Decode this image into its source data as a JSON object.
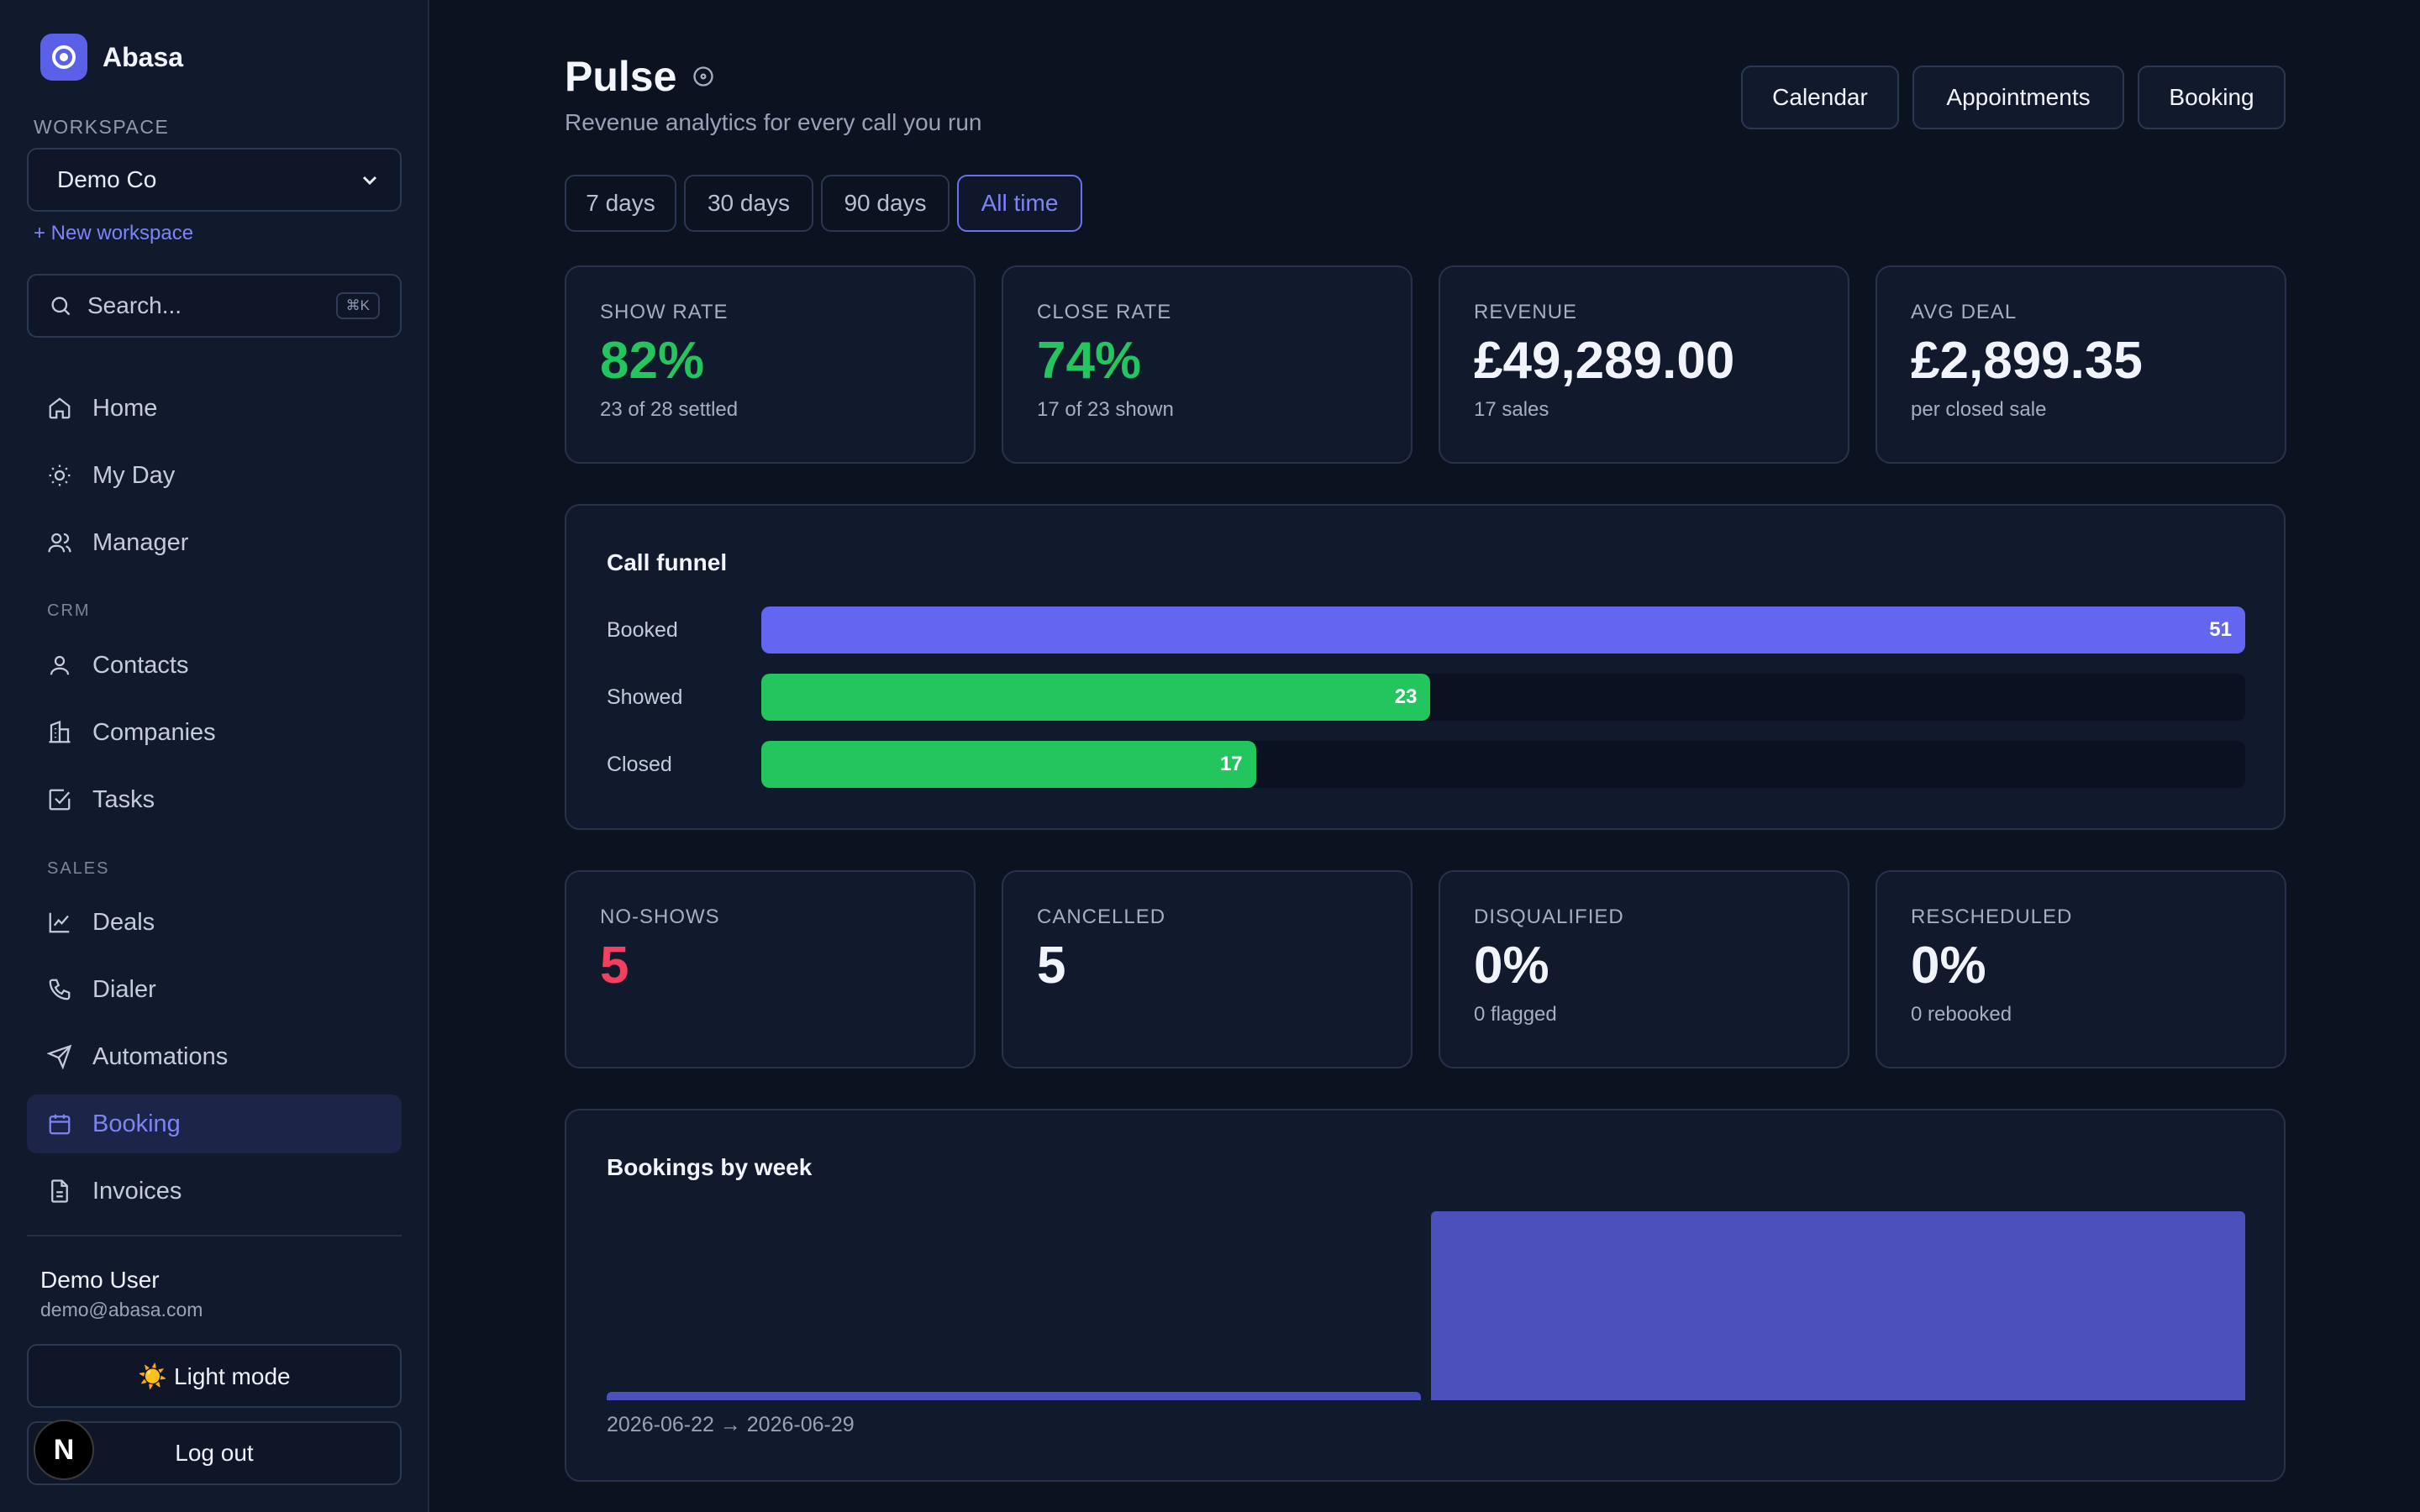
{
  "app": {
    "name": "Abasa"
  },
  "workspace": {
    "label": "WORKSPACE",
    "selected": "Demo Co",
    "new_link": "+ New workspace"
  },
  "search": {
    "placeholder": "Search...",
    "shortcut": "⌘K"
  },
  "nav": {
    "main": [
      {
        "label": "Home",
        "icon": "home-icon"
      },
      {
        "label": "My Day",
        "icon": "sun-icon"
      },
      {
        "label": "Manager",
        "icon": "users-icon"
      }
    ],
    "crm_label": "CRM",
    "crm": [
      {
        "label": "Contacts",
        "icon": "user-icon"
      },
      {
        "label": "Companies",
        "icon": "building-icon"
      },
      {
        "label": "Tasks",
        "icon": "checkbox-icon"
      }
    ],
    "sales_label": "SALES",
    "sales": [
      {
        "label": "Deals",
        "icon": "line-chart-icon"
      },
      {
        "label": "Dialer",
        "icon": "phone-icon"
      },
      {
        "label": "Automations",
        "icon": "send-icon"
      },
      {
        "label": "Booking",
        "icon": "calendar-icon",
        "active": true
      },
      {
        "label": "Invoices",
        "icon": "file-icon"
      }
    ]
  },
  "user": {
    "name": "Demo User",
    "email": "demo@abasa.com"
  },
  "sidebar_buttons": {
    "theme": "☀️ Light mode",
    "logout": "Log out"
  },
  "badge": {
    "letter": "N"
  },
  "header": {
    "title": "Pulse",
    "subtitle": "Revenue analytics for every call you run",
    "buttons": [
      "Calendar",
      "Appointments",
      "Booking"
    ]
  },
  "ranges": {
    "options": [
      "7 days",
      "30 days",
      "90 days",
      "All time"
    ],
    "selected": "All time"
  },
  "kpis": [
    {
      "label": "SHOW RATE",
      "value": "82%",
      "sub": "23 of 28 settled"
    },
    {
      "label": "CLOSE RATE",
      "value": "74%",
      "sub": "17 of 23 shown"
    },
    {
      "label": "REVENUE",
      "value": "£49,289.00",
      "sub": "17 sales"
    },
    {
      "label": "AVG DEAL",
      "value": "£2,899.35",
      "sub": "per closed sale"
    }
  ],
  "funnel": {
    "title": "Call funnel",
    "rows": [
      {
        "label": "Booked",
        "value": 51
      },
      {
        "label": "Showed",
        "value": 23
      },
      {
        "label": "Closed",
        "value": 17
      }
    ]
  },
  "secondary_kpis": [
    {
      "label": "NO-SHOWS",
      "value": "5",
      "sub": ""
    },
    {
      "label": "CANCELLED",
      "value": "5",
      "sub": ""
    },
    {
      "label": "DISQUALIFIED",
      "value": "0%",
      "sub": "0 flagged"
    },
    {
      "label": "RESCHEDULED",
      "value": "0%",
      "sub": "0 rebooked"
    }
  ],
  "chart_data": {
    "type": "bar",
    "title": "Bookings by week",
    "categories": [
      "2026-06-22",
      "2026-06-29"
    ],
    "values": [
      1,
      51
    ],
    "caption": "2026-06-22 → 2026-06-29"
  },
  "colors": {
    "accent": "#6366f1",
    "green": "#22c55e",
    "red": "#f43f5e",
    "bar": "#4b50bd"
  }
}
